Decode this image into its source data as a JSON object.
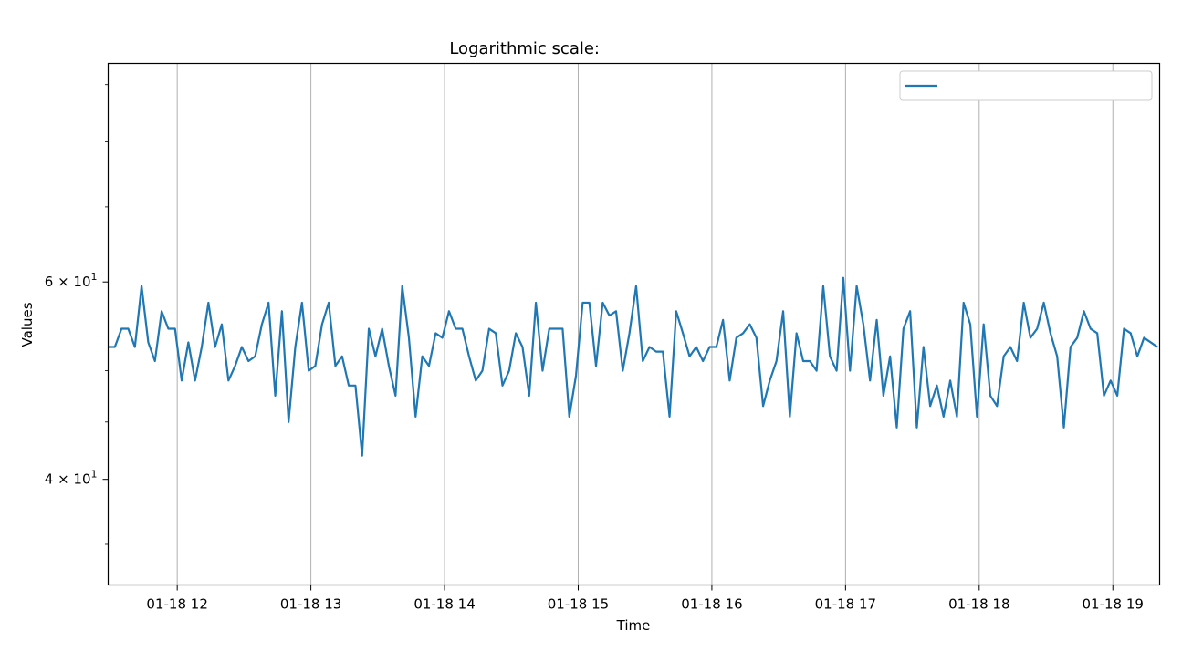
{
  "chart_data": {
    "type": "line",
    "title": "Logarithmic scale:",
    "xlabel": "Time",
    "ylabel": "Values",
    "yscale": "log",
    "ylim": [
      32.2,
      94
    ],
    "xlim": [
      "2024-01-18 11:29",
      "2024-01-18 19:21"
    ],
    "grid": "x-major vertical lines only",
    "legend_position": "top-right",
    "x_ticks": [
      "01-18 12",
      "01-18 13",
      "01-18 14",
      "01-18 15",
      "01-18 16",
      "01-18 17",
      "01-18 18",
      "01-18 19"
    ],
    "y_ticks": [
      {
        "value": 40,
        "mantissa": "4",
        "base": "10",
        "exponent": "1"
      },
      {
        "value": 60,
        "mantissa": "6",
        "base": "10",
        "exponent": "1"
      }
    ],
    "x_start": "2024-01-18 11:29",
    "x_interval_minutes": 3,
    "series": [
      {
        "color": "#1f77b4",
        "values": [
          52.5,
          52.5,
          54.5,
          54.5,
          52.5,
          59.5,
          53.0,
          51.0,
          56.5,
          54.5,
          54.5,
          49.0,
          53.0,
          49.0,
          52.5,
          57.5,
          52.5,
          55.0,
          49.0,
          50.5,
          52.5,
          51.0,
          51.5,
          55.0,
          57.5,
          47.5,
          56.5,
          45.0,
          52.5,
          57.5,
          50.0,
          50.5,
          55.0,
          57.5,
          50.5,
          51.5,
          48.5,
          48.5,
          42.0,
          54.5,
          51.5,
          54.5,
          50.5,
          47.5,
          59.5,
          53.5,
          45.5,
          51.5,
          50.5,
          54.0,
          53.5,
          56.5,
          54.5,
          54.5,
          51.5,
          49.0,
          50.0,
          54.5,
          54.0,
          48.5,
          50.0,
          54.0,
          52.5,
          47.5,
          57.5,
          50.0,
          54.5,
          54.5,
          54.5,
          45.5,
          49.5,
          57.5,
          57.5,
          50.5,
          57.5,
          56.0,
          56.5,
          50.0,
          54.0,
          59.5,
          51.0,
          52.5,
          52.0,
          52.0,
          45.5,
          56.5,
          54.0,
          51.5,
          52.5,
          51.0,
          52.5,
          52.5,
          55.5,
          49.0,
          53.5,
          54.0,
          55.0,
          53.5,
          46.5,
          49.0,
          51.0,
          56.5,
          45.5,
          54.0,
          51.0,
          51.0,
          50.0,
          59.5,
          51.5,
          50.0,
          60.5,
          50.0,
          59.5,
          55.0,
          49.0,
          55.5,
          47.5,
          51.5,
          44.5,
          54.5,
          56.5,
          44.5,
          52.5,
          46.5,
          48.5,
          45.5,
          49.0,
          45.5,
          57.5,
          55.0,
          45.5,
          55.0,
          47.5,
          46.5,
          51.5,
          52.5,
          51.0,
          57.5,
          53.5,
          54.5,
          57.5,
          54.0,
          51.5,
          44.5,
          52.5,
          53.5,
          56.5,
          54.5,
          54.0,
          47.5,
          49.0,
          47.5,
          54.5,
          54.0,
          51.5,
          53.5,
          53.0,
          52.5
        ]
      }
    ]
  }
}
